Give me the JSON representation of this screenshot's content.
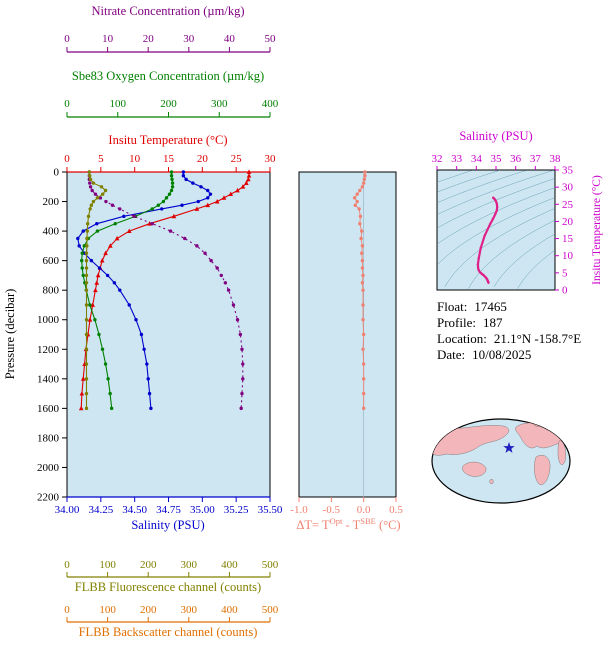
{
  "colors": {
    "plot_bg": "#cde6f2",
    "nitrate": "#800080",
    "oxygen": "#008000",
    "temperature": "#e00000",
    "salinity": "#0000cd",
    "fluorescence": "#808000",
    "backscatter": "#e06f00",
    "delta_t": "#f08070",
    "ts_title": "#cc00cc",
    "ts_curve": "#e0218a",
    "contours": "#49889c",
    "map_ocean": "#cde6f2",
    "map_land": "#f3b6bb",
    "star": "#1f1fbf",
    "axis_black": "#000000"
  },
  "info": {
    "float_label": "Float:",
    "float_value": "17465",
    "profile_label": "Profile:",
    "profile_value": "187",
    "location_label": "Location:",
    "location_value": "21.1°N -158.7°E",
    "date_label": "Date:",
    "date_value": "10/08/2025"
  },
  "chart_data": [
    {
      "id": "main_profiles",
      "type": "line",
      "ylabel": "Pressure (decibar)",
      "ylim": [
        0,
        2200
      ],
      "yticks": [
        0,
        200,
        400,
        600,
        800,
        1000,
        1200,
        1400,
        1600,
        1800,
        2000,
        2200
      ],
      "pressure": [
        0,
        25,
        50,
        75,
        100,
        125,
        150,
        175,
        200,
        225,
        250,
        300,
        350,
        400,
        450,
        500,
        550,
        600,
        650,
        700,
        750,
        800,
        900,
        1000,
        1100,
        1200,
        1300,
        1400,
        1500,
        1600
      ],
      "x_axes": [
        {
          "key": "nitrate",
          "label": "Nitrate Concentration (µm/kg)",
          "xlim": [
            0,
            50
          ],
          "ticks": [
            0,
            10,
            20,
            30,
            40,
            50
          ],
          "decimals": 0,
          "position": "top"
        },
        {
          "key": "oxygen",
          "label": "Sbe83 Oxygen Concentration (µm/kg)",
          "xlim": [
            0,
            400
          ],
          "ticks": [
            0,
            100,
            200,
            300,
            400
          ],
          "decimals": 0,
          "position": "top"
        },
        {
          "key": "temperature",
          "label": "Insitu Temperature (°C)",
          "xlim": [
            0,
            30
          ],
          "ticks": [
            0,
            5,
            10,
            15,
            20,
            25,
            30
          ],
          "decimals": 0,
          "position": "top"
        },
        {
          "key": "salinity",
          "label": "Salinity (PSU)",
          "xlim": [
            34.0,
            35.5
          ],
          "ticks": [
            34.0,
            34.25,
            34.5,
            34.75,
            35.0,
            35.25,
            35.5
          ],
          "decimals": 2,
          "position": "bottom"
        },
        {
          "key": "fluorescence",
          "label": "FLBB Fluorescence channel (counts)",
          "xlim": [
            0,
            500
          ],
          "ticks": [
            0,
            100,
            200,
            300,
            400,
            500
          ],
          "decimals": 0,
          "position": "bottom"
        },
        {
          "key": "backscatter",
          "label": "FLBB Backscatter channel (counts)",
          "xlim": [
            0,
            500
          ],
          "ticks": [
            0,
            100,
            200,
            300,
            400,
            500
          ],
          "decimals": 0,
          "position": "bottom"
        }
      ],
      "series": [
        {
          "key": "temperature",
          "axis": "temperature",
          "marker": "triangle",
          "values": [
            26.9,
            26.9,
            26.8,
            26.5,
            26.0,
            25.2,
            24.2,
            23.2,
            22.2,
            20.8,
            19.2,
            15.8,
            12.2,
            9.2,
            7.4,
            6.4,
            5.7,
            5.2,
            4.9,
            4.6,
            4.4,
            4.2,
            3.8,
            3.4,
            3.1,
            2.8,
            2.6,
            2.4,
            2.2,
            2.1
          ]
        },
        {
          "key": "salinity",
          "axis": "salinity",
          "marker": "circle",
          "values": [
            34.86,
            34.86,
            34.88,
            34.93,
            34.99,
            35.04,
            35.06,
            35.04,
            34.97,
            34.85,
            34.7,
            34.42,
            34.22,
            34.12,
            34.08,
            34.09,
            34.13,
            34.18,
            34.24,
            34.3,
            34.35,
            34.39,
            34.46,
            34.51,
            34.55,
            34.57,
            34.59,
            34.6,
            34.61,
            34.62
          ]
        },
        {
          "key": "oxygen",
          "axis": "oxygen",
          "marker": "circle",
          "values": [
            206,
            206,
            207,
            208,
            208,
            206,
            202,
            196,
            190,
            180,
            168,
            135,
            95,
            60,
            42,
            34,
            30,
            29,
            30,
            32,
            35,
            38,
            45,
            55,
            63,
            70,
            76,
            81,
            85,
            88
          ]
        },
        {
          "key": "nitrate",
          "axis": "nitrate",
          "marker": "circle",
          "dashed": true,
          "values": [
            5.5,
            5.5,
            5.5,
            5.6,
            5.8,
            6.2,
            7.0,
            8.2,
            9.6,
            11.2,
            13.0,
            16.5,
            21.0,
            25.5,
            29.0,
            32.0,
            34.0,
            35.5,
            37.0,
            38.0,
            39.0,
            39.8,
            41.0,
            42.0,
            42.7,
            43.1,
            43.3,
            43.3,
            43.1,
            42.9
          ]
        },
        {
          "key": "fluorescence",
          "axis": "fluorescence",
          "marker": "circle",
          "values": [
            55,
            56,
            58,
            65,
            85,
            95,
            88,
            75,
            65,
            60,
            57,
            53,
            51,
            50,
            49,
            49,
            48,
            48,
            48,
            48,
            48,
            48,
            48,
            48,
            48,
            48,
            48,
            48,
            48,
            48
          ]
        }
      ]
    },
    {
      "id": "delta_t",
      "type": "scatter",
      "xlabel_parts": {
        "prefix": "ΔT= T",
        "sup1": "Opt",
        "mid": " - T",
        "sup2": "SBE",
        "suffix": " (°C)"
      },
      "xlim": [
        -1.0,
        0.5
      ],
      "xticks": [
        -1.0,
        -0.5,
        0.0,
        0.5
      ],
      "ylim": [
        0,
        2200
      ],
      "pressure": [
        0,
        25,
        50,
        75,
        100,
        125,
        150,
        175,
        200,
        225,
        250,
        300,
        350,
        400,
        450,
        500,
        550,
        600,
        650,
        700,
        750,
        800,
        900,
        1000,
        1100,
        1200,
        1300,
        1400,
        1500,
        1600
      ],
      "values": [
        0.02,
        0.02,
        0.01,
        0.0,
        -0.02,
        -0.06,
        -0.1,
        -0.14,
        -0.1,
        -0.13,
        -0.07,
        -0.05,
        -0.06,
        -0.03,
        -0.04,
        -0.02,
        -0.03,
        -0.02,
        -0.02,
        -0.01,
        -0.02,
        -0.01,
        -0.01,
        -0.01,
        0.0,
        -0.01,
        0.0,
        0.0,
        0.0,
        0.0
      ]
    },
    {
      "id": "ts_diagram",
      "type": "line",
      "title": "Salinity (PSU)",
      "xlim": [
        32,
        38
      ],
      "xticks": [
        32,
        33,
        34,
        35,
        36,
        37,
        38
      ],
      "ylabel": "Insitu Temperature (°C)",
      "ylim": [
        0,
        35
      ],
      "yticks": [
        0,
        5,
        10,
        15,
        20,
        25,
        30,
        35
      ],
      "salinity": [
        34.86,
        34.86,
        34.88,
        34.93,
        34.99,
        35.04,
        35.06,
        35.04,
        34.97,
        34.85,
        34.7,
        34.42,
        34.22,
        34.12,
        34.08,
        34.09,
        34.13,
        34.18,
        34.24,
        34.3,
        34.35,
        34.39,
        34.46,
        34.51,
        34.55,
        34.57,
        34.59,
        34.6,
        34.61,
        34.62
      ],
      "temperature": [
        26.9,
        26.9,
        26.8,
        26.5,
        26.0,
        25.2,
        24.2,
        23.2,
        22.2,
        20.8,
        19.2,
        15.8,
        12.2,
        9.2,
        7.4,
        6.4,
        5.7,
        5.2,
        4.9,
        4.6,
        4.4,
        4.2,
        3.8,
        3.4,
        3.1,
        2.8,
        2.6,
        2.4,
        2.2,
        2.1
      ],
      "sigma_contour_levels": [
        19,
        20,
        21,
        22,
        23,
        24,
        25,
        26,
        27,
        28,
        29
      ]
    }
  ]
}
